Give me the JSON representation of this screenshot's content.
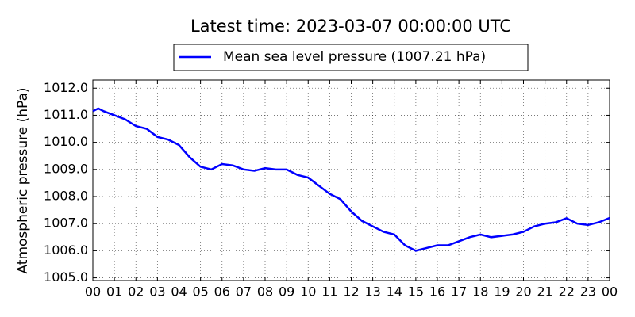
{
  "chart_data": {
    "type": "line",
    "title": "Latest time: 2023-03-07 00:00:00 UTC",
    "y_label": "Atmospheric pressure (hPa)",
    "x": [
      0,
      0.25,
      0.5,
      1,
      1.5,
      2,
      2.5,
      3,
      3.5,
      4,
      4.5,
      5,
      5.5,
      6,
      6.5,
      7,
      7.5,
      8,
      8.5,
      9,
      9.5,
      10,
      10.5,
      11,
      11.5,
      12,
      12.5,
      13,
      13.5,
      14,
      14.5,
      15,
      15.5,
      16,
      16.5,
      17,
      17.5,
      18,
      18.5,
      19,
      19.5,
      20,
      20.5,
      21,
      21.5,
      22,
      22.5,
      23,
      23.5,
      24
    ],
    "series": [
      {
        "name": "Mean sea level pressure (1007.21 hPa)",
        "color": "#0000ff",
        "values": [
          1011.15,
          1011.25,
          1011.15,
          1011.0,
          1010.85,
          1010.6,
          1010.5,
          1010.2,
          1010.1,
          1009.9,
          1009.45,
          1009.1,
          1009.0,
          1009.2,
          1009.15,
          1009.0,
          1008.95,
          1009.05,
          1009.0,
          1009.0,
          1008.8,
          1008.7,
          1008.4,
          1008.1,
          1007.9,
          1007.45,
          1007.1,
          1006.9,
          1006.7,
          1006.6,
          1006.2,
          1006.0,
          1006.1,
          1006.2,
          1006.2,
          1006.35,
          1006.5,
          1006.6,
          1006.5,
          1006.55,
          1006.6,
          1006.7,
          1006.9,
          1007.0,
          1007.05,
          1007.2,
          1007.0,
          1006.95,
          1007.05,
          1007.21
        ]
      }
    ],
    "xlim": [
      0,
      24
    ],
    "xticks": [
      {
        "value": 0,
        "label": "00"
      },
      {
        "value": 1,
        "label": "01"
      },
      {
        "value": 2,
        "label": "02"
      },
      {
        "value": 3,
        "label": "03"
      },
      {
        "value": 4,
        "label": "04"
      },
      {
        "value": 5,
        "label": "05"
      },
      {
        "value": 6,
        "label": "06"
      },
      {
        "value": 7,
        "label": "07"
      },
      {
        "value": 8,
        "label": "08"
      },
      {
        "value": 9,
        "label": "09"
      },
      {
        "value": 10,
        "label": "10"
      },
      {
        "value": 11,
        "label": "11"
      },
      {
        "value": 12,
        "label": "12"
      },
      {
        "value": 13,
        "label": "13"
      },
      {
        "value": 14,
        "label": "14"
      },
      {
        "value": 15,
        "label": "15"
      },
      {
        "value": 16,
        "label": "16"
      },
      {
        "value": 17,
        "label": "17"
      },
      {
        "value": 18,
        "label": "18"
      },
      {
        "value": 19,
        "label": "19"
      },
      {
        "value": 20,
        "label": "20"
      },
      {
        "value": 21,
        "label": "21"
      },
      {
        "value": 22,
        "label": "22"
      },
      {
        "value": 23,
        "label": "23"
      },
      {
        "value": 24,
        "label": "00"
      }
    ],
    "ylim": [
      1004.9,
      1012.3
    ],
    "yticks": [
      {
        "value": 1005,
        "label": "1005.0"
      },
      {
        "value": 1006,
        "label": "1006.0"
      },
      {
        "value": 1007,
        "label": "1007.0"
      },
      {
        "value": 1008,
        "label": "1008.0"
      },
      {
        "value": 1009,
        "label": "1009.0"
      },
      {
        "value": 1010,
        "label": "1010.0"
      },
      {
        "value": 1011,
        "label": "1011.0"
      },
      {
        "value": 1012,
        "label": "1012.0"
      }
    ],
    "grid": true,
    "legend": "top"
  }
}
